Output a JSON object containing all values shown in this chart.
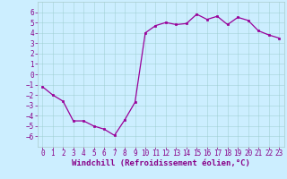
{
  "x": [
    0,
    1,
    2,
    3,
    4,
    5,
    6,
    7,
    8,
    9,
    10,
    11,
    12,
    13,
    14,
    15,
    16,
    17,
    18,
    19,
    20,
    21,
    22,
    23
  ],
  "y": [
    -1.2,
    -2.0,
    -2.6,
    -4.5,
    -4.5,
    -5.0,
    -5.3,
    -5.9,
    -4.4,
    -2.7,
    4.0,
    4.7,
    5.0,
    4.8,
    4.9,
    5.8,
    5.3,
    5.6,
    4.8,
    5.5,
    5.2,
    4.2,
    3.8,
    3.5
  ],
  "line_color": "#990099",
  "marker": "s",
  "markersize": 2.0,
  "linewidth": 0.9,
  "background_color": "#cceeff",
  "grid_color": "#99cccc",
  "ylim": [
    -7,
    7
  ],
  "yticks": [
    -6,
    -5,
    -4,
    -3,
    -2,
    -1,
    0,
    1,
    2,
    3,
    4,
    5,
    6
  ],
  "xticks": [
    0,
    1,
    2,
    3,
    4,
    5,
    6,
    7,
    8,
    9,
    10,
    11,
    12,
    13,
    14,
    15,
    16,
    17,
    18,
    19,
    20,
    21,
    22,
    23
  ],
  "xlabel": "Windchill (Refroidissement éolien,°C)",
  "xlabel_fontsize": 6.5,
  "tick_fontsize": 5.5,
  "tick_color": "#880088",
  "axis_color": "#880088",
  "spine_color": "#aacccc"
}
